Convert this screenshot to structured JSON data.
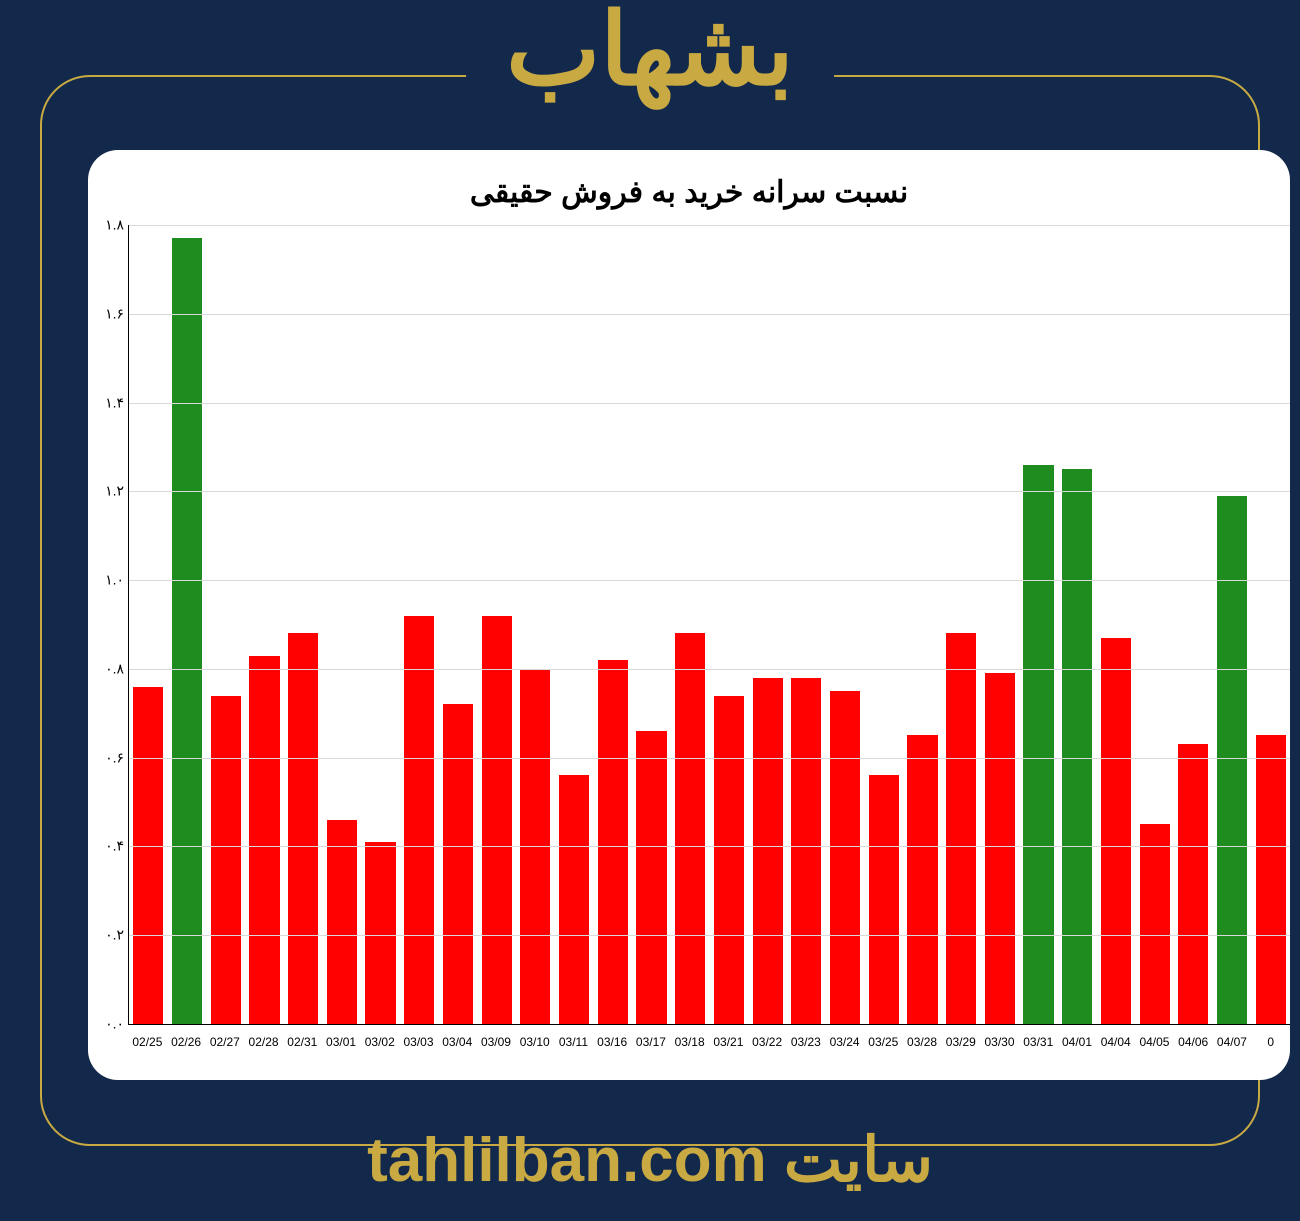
{
  "header": {
    "title": "بشهاب"
  },
  "footer": {
    "text": "سایت tahlilban.com"
  },
  "chart": {
    "type": "bar",
    "title": "نسبت سرانه خرید به فروش حقیقی",
    "title_fontsize": 30,
    "background_color": "#ffffff",
    "grid_color": "#d9d9d9",
    "axis_color": "#000000",
    "ylim": [
      0,
      1.8
    ],
    "ytick_step": 0.2,
    "yticks": [
      "۰.۰",
      "۰.۲",
      "۰.۴",
      "۰.۶",
      "۰.۸",
      "۱.۰",
      "۱.۲",
      "۱.۴",
      "۱.۶",
      "۱.۸"
    ],
    "bar_width": 0.78,
    "label_fontsize": 12,
    "colors": {
      "positive": "#1e8c1e",
      "negative": "#ff0101"
    },
    "categories": [
      "02/25",
      "02/26",
      "02/27",
      "02/28",
      "02/31",
      "03/01",
      "03/02",
      "03/03",
      "03/04",
      "03/09",
      "03/10",
      "03/11",
      "03/16",
      "03/17",
      "03/18",
      "03/21",
      "03/22",
      "03/23",
      "03/24",
      "03/25",
      "03/28",
      "03/29",
      "03/30",
      "03/31",
      "04/01",
      "04/04",
      "04/05",
      "04/06",
      "04/07",
      "0"
    ],
    "values": [
      0.76,
      1.77,
      0.74,
      0.83,
      0.88,
      0.46,
      0.41,
      0.92,
      0.72,
      0.92,
      0.8,
      0.56,
      0.82,
      0.66,
      0.88,
      0.74,
      0.78,
      0.78,
      0.75,
      0.56,
      0.65,
      0.88,
      0.79,
      1.26,
      1.25,
      0.87,
      0.45,
      0.63,
      1.19,
      0.65
    ],
    "bar_colors": [
      "#ff0101",
      "#1e8c1e",
      "#ff0101",
      "#ff0101",
      "#ff0101",
      "#ff0101",
      "#ff0101",
      "#ff0101",
      "#ff0101",
      "#ff0101",
      "#ff0101",
      "#ff0101",
      "#ff0101",
      "#ff0101",
      "#ff0101",
      "#ff0101",
      "#ff0101",
      "#ff0101",
      "#ff0101",
      "#ff0101",
      "#ff0101",
      "#ff0101",
      "#ff0101",
      "#1e8c1e",
      "#1e8c1e",
      "#ff0101",
      "#ff0101",
      "#ff0101",
      "#1e8c1e",
      "#ff0101"
    ]
  },
  "page": {
    "background_color": "#12294b",
    "accent_color": "#c9a942"
  }
}
